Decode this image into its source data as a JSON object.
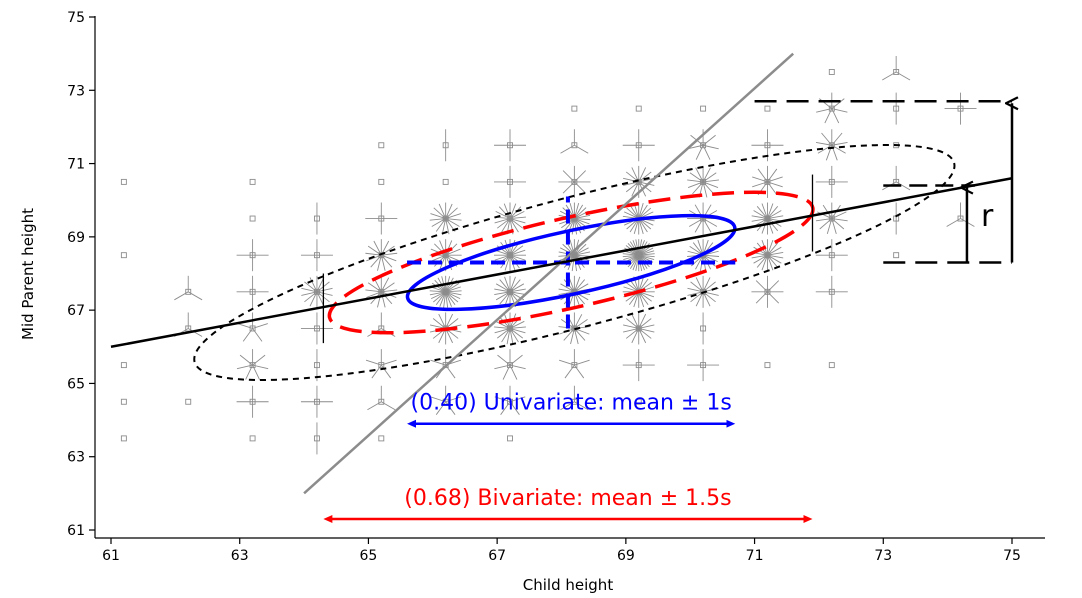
{
  "chart_data": {
    "type": "scatter",
    "title": "",
    "xlabel": "Child height",
    "ylabel": "Mid Parent height",
    "xlim": [
      60.8,
      75.4
    ],
    "ylim": [
      60.8,
      75.2
    ],
    "xticks": [
      61,
      63,
      65,
      67,
      69,
      71,
      73,
      75
    ],
    "yticks": [
      61,
      63,
      65,
      67,
      69,
      71,
      73,
      75
    ],
    "xtick_labels": [
      "61",
      "63",
      "65",
      "67",
      "69",
      "71",
      "73",
      "75"
    ],
    "ytick_labels": [
      "61",
      "63",
      "65",
      "67",
      "69",
      "71",
      "73",
      "75"
    ],
    "grid": false,
    "sunflower_points": [
      {
        "x": 61.2,
        "y": 70.5,
        "n": 1
      },
      {
        "x": 61.2,
        "y": 68.5,
        "n": 1
      },
      {
        "x": 61.2,
        "y": 65.5,
        "n": 1
      },
      {
        "x": 61.2,
        "y": 64.5,
        "n": 1
      },
      {
        "x": 61.2,
        "y": 63.5,
        "n": 1
      },
      {
        "x": 62.2,
        "y": 67.5,
        "n": 3
      },
      {
        "x": 62.2,
        "y": 66.5,
        "n": 3
      },
      {
        "x": 62.2,
        "y": 64.5,
        "n": 1
      },
      {
        "x": 63.2,
        "y": 70.5,
        "n": 1
      },
      {
        "x": 63.2,
        "y": 69.5,
        "n": 1
      },
      {
        "x": 63.2,
        "y": 68.5,
        "n": 4
      },
      {
        "x": 63.2,
        "y": 67.5,
        "n": 4
      },
      {
        "x": 63.2,
        "y": 66.5,
        "n": 5
      },
      {
        "x": 63.2,
        "y": 65.5,
        "n": 7
      },
      {
        "x": 63.2,
        "y": 64.5,
        "n": 4
      },
      {
        "x": 63.2,
        "y": 63.5,
        "n": 1
      },
      {
        "x": 64.2,
        "y": 69.5,
        "n": 2
      },
      {
        "x": 64.2,
        "y": 68.5,
        "n": 4
      },
      {
        "x": 64.2,
        "y": 67.5,
        "n": 14
      },
      {
        "x": 64.2,
        "y": 66.5,
        "n": 4
      },
      {
        "x": 64.2,
        "y": 65.5,
        "n": 2
      },
      {
        "x": 64.2,
        "y": 64.5,
        "n": 4
      },
      {
        "x": 64.2,
        "y": 63.5,
        "n": 2
      },
      {
        "x": 65.2,
        "y": 71.5,
        "n": 1
      },
      {
        "x": 65.2,
        "y": 70.5,
        "n": 1
      },
      {
        "x": 65.2,
        "y": 69.5,
        "n": 4
      },
      {
        "x": 65.2,
        "y": 68.5,
        "n": 13
      },
      {
        "x": 65.2,
        "y": 67.5,
        "n": 13
      },
      {
        "x": 65.2,
        "y": 66.5,
        "n": 3
      },
      {
        "x": 65.2,
        "y": 65.5,
        "n": 5
      },
      {
        "x": 65.2,
        "y": 64.5,
        "n": 3
      },
      {
        "x": 65.2,
        "y": 63.5,
        "n": 1
      },
      {
        "x": 66.2,
        "y": 71.5,
        "n": 2
      },
      {
        "x": 66.2,
        "y": 70.5,
        "n": 1
      },
      {
        "x": 66.2,
        "y": 69.5,
        "n": 15
      },
      {
        "x": 66.2,
        "y": 68.5,
        "n": 16
      },
      {
        "x": 66.2,
        "y": 67.5,
        "n": 25
      },
      {
        "x": 66.2,
        "y": 66.5,
        "n": 14
      },
      {
        "x": 66.2,
        "y": 65.5,
        "n": 5
      },
      {
        "x": 66.2,
        "y": 64.5,
        "n": 5
      },
      {
        "x": 67.2,
        "y": 71.5,
        "n": 4
      },
      {
        "x": 67.2,
        "y": 70.5,
        "n": 4
      },
      {
        "x": 67.2,
        "y": 69.5,
        "n": 17
      },
      {
        "x": 67.2,
        "y": 68.5,
        "n": 20
      },
      {
        "x": 67.2,
        "y": 67.5,
        "n": 18
      },
      {
        "x": 67.2,
        "y": 66.5,
        "n": 17
      },
      {
        "x": 67.2,
        "y": 65.5,
        "n": 7
      },
      {
        "x": 67.2,
        "y": 64.5,
        "n": 5
      },
      {
        "x": 67.2,
        "y": 63.5,
        "n": 1
      },
      {
        "x": 68.2,
        "y": 72.5,
        "n": 1
      },
      {
        "x": 68.2,
        "y": 71.5,
        "n": 3
      },
      {
        "x": 68.2,
        "y": 70.5,
        "n": 8
      },
      {
        "x": 68.2,
        "y": 69.5,
        "n": 23
      },
      {
        "x": 68.2,
        "y": 68.5,
        "n": 23
      },
      {
        "x": 68.2,
        "y": 67.5,
        "n": 18
      },
      {
        "x": 68.2,
        "y": 66.5,
        "n": 13
      },
      {
        "x": 68.2,
        "y": 65.5,
        "n": 5
      },
      {
        "x": 68.2,
        "y": 64.5,
        "n": 3
      },
      {
        "x": 69.2,
        "y": 72.5,
        "n": 1
      },
      {
        "x": 69.2,
        "y": 71.5,
        "n": 4
      },
      {
        "x": 69.2,
        "y": 70.5,
        "n": 14
      },
      {
        "x": 69.2,
        "y": 69.5,
        "n": 22
      },
      {
        "x": 69.2,
        "y": 68.5,
        "n": 34
      },
      {
        "x": 69.2,
        "y": 67.5,
        "n": 20
      },
      {
        "x": 69.2,
        "y": 66.5,
        "n": 14
      },
      {
        "x": 69.2,
        "y": 65.5,
        "n": 4
      },
      {
        "x": 69.2,
        "y": 64.5,
        "n": 1
      },
      {
        "x": 70.2,
        "y": 72.5,
        "n": 1
      },
      {
        "x": 70.2,
        "y": 71.5,
        "n": 7
      },
      {
        "x": 70.2,
        "y": 70.5,
        "n": 13
      },
      {
        "x": 70.2,
        "y": 69.5,
        "n": 12
      },
      {
        "x": 70.2,
        "y": 68.5,
        "n": 19
      },
      {
        "x": 70.2,
        "y": 67.5,
        "n": 14
      },
      {
        "x": 70.2,
        "y": 66.5,
        "n": 2
      },
      {
        "x": 70.2,
        "y": 65.5,
        "n": 4
      },
      {
        "x": 71.2,
        "y": 72.5,
        "n": 1
      },
      {
        "x": 71.2,
        "y": 71.5,
        "n": 4
      },
      {
        "x": 71.2,
        "y": 70.5,
        "n": 10
      },
      {
        "x": 71.2,
        "y": 69.5,
        "n": 18
      },
      {
        "x": 71.2,
        "y": 68.5,
        "n": 18
      },
      {
        "x": 71.2,
        "y": 67.5,
        "n": 8
      },
      {
        "x": 71.2,
        "y": 65.5,
        "n": 1
      },
      {
        "x": 72.2,
        "y": 73.5,
        "n": 1
      },
      {
        "x": 72.2,
        "y": 72.5,
        "n": 7
      },
      {
        "x": 72.2,
        "y": 71.5,
        "n": 9
      },
      {
        "x": 72.2,
        "y": 70.5,
        "n": 4
      },
      {
        "x": 72.2,
        "y": 69.5,
        "n": 11
      },
      {
        "x": 72.2,
        "y": 68.5,
        "n": 4
      },
      {
        "x": 72.2,
        "y": 67.5,
        "n": 4
      },
      {
        "x": 72.2,
        "y": 65.5,
        "n": 1
      },
      {
        "x": 73.2,
        "y": 73.5,
        "n": 3
      },
      {
        "x": 73.2,
        "y": 72.5,
        "n": 2
      },
      {
        "x": 73.2,
        "y": 71.5,
        "n": 1
      },
      {
        "x": 73.2,
        "y": 70.5,
        "n": 3
      },
      {
        "x": 73.2,
        "y": 69.5,
        "n": 2
      },
      {
        "x": 73.2,
        "y": 68.5,
        "n": 1
      },
      {
        "x": 74.2,
        "y": 72.5,
        "n": 4
      },
      {
        "x": 74.2,
        "y": 69.5,
        "n": 3
      }
    ],
    "regression_line": {
      "x": [
        61,
        75
      ],
      "y": [
        66.0,
        70.6
      ]
    },
    "major_axis_line": {
      "x": [
        64.0,
        71.6
      ],
      "y": [
        62.0,
        74.0
      ]
    },
    "ellipse_2s": {
      "cx": 68.2,
      "cy": 68.3,
      "rx": 6.1,
      "ry": 4.2,
      "tilt_x": 0.46,
      "style": "black short-dash"
    },
    "ellipse_1_5s": {
      "cx": 68.15,
      "cy": 68.3,
      "rx": 3.85,
      "ry": 2.35,
      "tilt_x": 0.4,
      "style": "red long-dash"
    },
    "ellipse_1s": {
      "cx": 68.15,
      "cy": 68.3,
      "rx": 2.6,
      "ry": 1.65,
      "tilt_x": 0.38,
      "style": "blue solid"
    },
    "blue_mean_cross": {
      "x_range": [
        65.6,
        70.7
      ],
      "y_level": 68.3,
      "x_level": 68.1,
      "y_range": [
        66.5,
        70.1
      ]
    },
    "regression_ticks": [
      {
        "x": 64.3,
        "y": [
          66.1,
          68.0
        ]
      },
      {
        "x": 71.9,
        "y": [
          68.6,
          70.7
        ]
      }
    ],
    "r_bracket": {
      "x_from": 73.0,
      "x_to": 74.3,
      "y_low": 68.3,
      "y_high": 70.4,
      "label": "r"
    },
    "total_bracket": {
      "x_from": 71.0,
      "x_to": 75.0,
      "y_low": 68.3,
      "y_high": 72.7
    },
    "annotations": [
      {
        "text": "(0.40) Univariate: mean ± 1s",
        "color": "#0000ff",
        "x_range": [
          65.6,
          70.7
        ],
        "y": 63.9
      },
      {
        "text": "(0.68) Bivariate: mean ± 1.5s",
        "color": "#ff0000",
        "x_range": [
          64.3,
          71.9
        ],
        "y": 61.3
      }
    ],
    "colors": {
      "points": "#8c8c8c",
      "blue": "#0000ff",
      "red": "#ff0000",
      "black": "#000000",
      "major_axis": "#8c8c8c"
    }
  }
}
